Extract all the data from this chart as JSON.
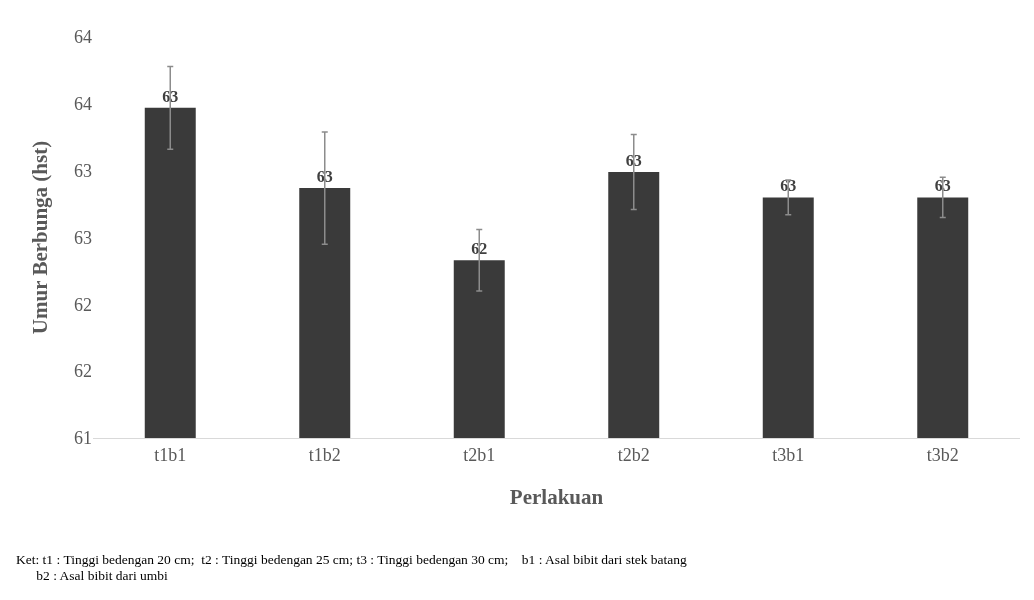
{
  "chart_data": {
    "type": "bar",
    "xlabel": "Perlakuan",
    "ylabel": "Umur Berbunga (hst)",
    "categories": [
      "t1b1",
      "t1b2",
      "t2b1",
      "t2b2",
      "t3b1",
      "t3b2"
    ],
    "values": [
      63.47,
      62.87,
      62.33,
      62.99,
      62.8,
      62.8
    ],
    "errors": [
      0.31,
      0.42,
      0.23,
      0.28,
      0.13,
      0.15
    ],
    "value_labels": [
      "63",
      "63",
      "62",
      "63",
      "63",
      "63"
    ],
    "color": "#3a3a3a",
    "ylim": [
      61,
      64
    ],
    "yticks": [
      61,
      {
        "value": 61.5,
        "label": "62"
      },
      62,
      {
        "value": 62.5,
        "label": "63"
      },
      63,
      {
        "value": 63.5,
        "label": "64"
      },
      64
    ],
    "grid": false,
    "annotations": [
      "Ket: t1 : Tinggi bedengan 20 cm;  t2 : Tinggi bedengan 25 cm; t3 : Tinggi bedengan 30 cm;    b1 : Asal bibit dari stek batang",
      "      b2 : Asal bibit dari umbi"
    ]
  }
}
